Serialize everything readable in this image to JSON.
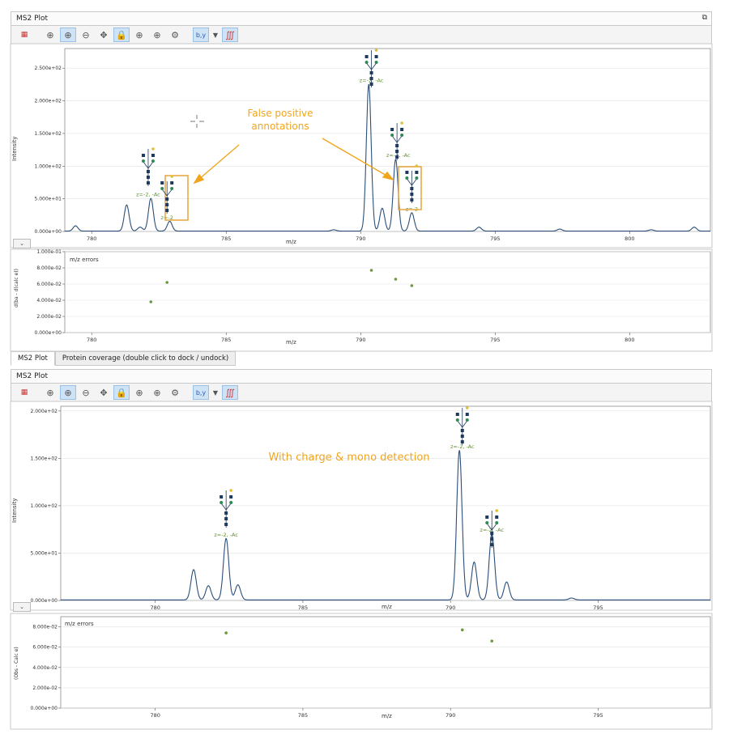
{
  "panel1": {
    "title": "MS2 Plot",
    "undock_icon": "undock-icon",
    "toolbar": [
      "annotate-icon",
      "zoom-in-icon",
      "zoom-in-active-icon",
      "zoom-out-icon",
      "pan-icon",
      "lock-icon",
      "zoom-x-icon",
      "zoom-y-icon",
      "gear-icon",
      "ion-type-icon",
      "dropdown-icon",
      "peaks-icon"
    ],
    "ion_type_label": "b,y",
    "main": {
      "xlabel": "m/z",
      "ylabel": "Intensity",
      "xticks": [
        "780",
        "785",
        "790",
        "795",
        "800"
      ],
      "yticks": [
        "0.000e+00",
        "5.000e+01",
        "1.000e+02",
        "1.500e+02",
        "2.000e+02",
        "2.500e+02"
      ],
      "annotation_title": "False positive",
      "annotation_sub": "annotations",
      "labels": [
        {
          "text": "z=-2, -Ac",
          "x": 782.1
        },
        {
          "text": "z=-2",
          "x": 782.8
        },
        {
          "text": "z=-2, -Ac",
          "x": 790.4
        },
        {
          "text": "z=-2, -Ac",
          "x": 791.4
        },
        {
          "text": "z=-2",
          "x": 791.9
        }
      ]
    },
    "errors": {
      "title": "m/z errors",
      "xlabel": "m/z",
      "ylabel": "d(ba - d(calc e))",
      "xticks": [
        "780",
        "785",
        "790",
        "795",
        "800"
      ],
      "yticks": [
        "0.000e+00",
        "2.000e-02",
        "4.000e-02",
        "6.000e-02",
        "8.000e-02",
        "1.000e-01"
      ]
    },
    "tabs": [
      "MS2 Plot",
      "Protein coverage (double click to dock / undock)"
    ]
  },
  "panel2": {
    "title": "MS2 Plot",
    "toolbar": [
      "annotate-icon",
      "zoom-in-icon",
      "zoom-in-active-icon",
      "zoom-out-icon",
      "pan-icon",
      "lock-icon",
      "zoom-x-icon",
      "zoom-y-icon",
      "gear-icon",
      "ion-type-icon",
      "dropdown-icon",
      "peaks-icon"
    ],
    "ion_type_label": "b,y",
    "main": {
      "xlabel": "m/z",
      "ylabel": "Intensity",
      "xticks": [
        "780",
        "785",
        "790",
        "795"
      ],
      "yticks": [
        "0.000e+00",
        "5.000e+01",
        "1.000e+02",
        "1.500e+02",
        "2.000e+02"
      ],
      "annotation": "With charge & mono detection",
      "labels": [
        {
          "text": "z=-2, -Ac",
          "x": 782.4
        },
        {
          "text": "z=-2, -Ac",
          "x": 790.4
        },
        {
          "text": "z=-2, -Ac",
          "x": 791.4
        }
      ]
    },
    "errors": {
      "title": "m/z errors",
      "xlabel": "m/z",
      "ylabel": "(Obs - Calc e)",
      "xticks": [
        "780",
        "785",
        "790",
        "795"
      ],
      "yticks": [
        "0.000e+00",
        "2.000e-02",
        "4.000e-02",
        "6.000e-02",
        "8.000e-02"
      ]
    }
  },
  "colors": {
    "spectrum": "#2b4f7a",
    "annotation": "#f0a51e",
    "label": "#5f8f2e",
    "glycan_box": "#e8a33a",
    "point": "#6a9a3a"
  },
  "chart_data": [
    {
      "type": "line",
      "title": "",
      "xlabel": "m/z",
      "ylabel": "Intensity",
      "xlim": [
        779,
        803
      ],
      "ylim": [
        0,
        280
      ],
      "peaks": [
        [
          779.4,
          8
        ],
        [
          781.3,
          40
        ],
        [
          781.8,
          6
        ],
        [
          782.2,
          50
        ],
        [
          782.9,
          15
        ],
        [
          789.0,
          2
        ],
        [
          790.3,
          225
        ],
        [
          790.8,
          35
        ],
        [
          791.3,
          110
        ],
        [
          791.9,
          28
        ],
        [
          794.4,
          6
        ],
        [
          797.4,
          3
        ],
        [
          800.8,
          2
        ],
        [
          802.4,
          6
        ]
      ]
    },
    {
      "type": "scatter",
      "title": "m/z errors",
      "xlabel": "m/z",
      "ylabel": "d(ba - d(calc e))",
      "xlim": [
        779,
        803
      ],
      "ylim": [
        0,
        0.1
      ],
      "x": [
        782.2,
        782.8,
        790.4,
        791.3,
        791.9
      ],
      "y": [
        0.038,
        0.062,
        0.077,
        0.066,
        0.058
      ]
    },
    {
      "type": "line",
      "title": "",
      "xlabel": "m/z",
      "ylabel": "Intensity",
      "xlim": [
        776.8,
        798.8
      ],
      "ylim": [
        0,
        205
      ],
      "peaks": [
        [
          781.3,
          32
        ],
        [
          781.8,
          15
        ],
        [
          782.4,
          65
        ],
        [
          782.8,
          16
        ],
        [
          790.3,
          158
        ],
        [
          790.8,
          40
        ],
        [
          791.4,
          70
        ],
        [
          791.9,
          19
        ],
        [
          794.1,
          2
        ]
      ]
    },
    {
      "type": "scatter",
      "title": "m/z errors",
      "xlabel": "m/z",
      "ylabel": "(Obs - Calc e)",
      "xlim": [
        776.8,
        798.8
      ],
      "ylim": [
        0,
        0.09
      ],
      "x": [
        782.4,
        790.4,
        791.4
      ],
      "y": [
        0.074,
        0.077,
        0.066
      ]
    }
  ]
}
